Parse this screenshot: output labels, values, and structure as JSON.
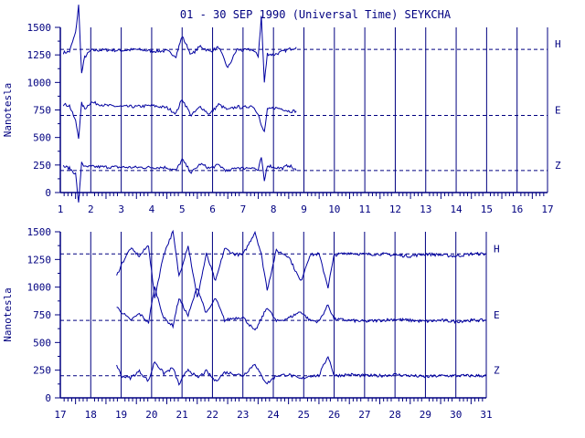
{
  "title": "01 - 30 SEP 1990 (Universal Time) SEYKCHA",
  "colors": {
    "axis": "#000080",
    "trace": "#0000a0",
    "background": "#ffffff"
  },
  "chart_data": [
    {
      "type": "line",
      "panel": "top",
      "ylabel": "Nanotesla",
      "ylim": [
        0,
        1500
      ],
      "yticks": [
        0,
        250,
        500,
        750,
        1000,
        1250,
        1500
      ],
      "xlim": [
        1,
        17
      ],
      "xticks": [
        1,
        2,
        3,
        4,
        5,
        6,
        7,
        8,
        9,
        10,
        11,
        12,
        13,
        14,
        15,
        16,
        17
      ],
      "x_unit": "day of month",
      "data_coverage": [
        1.1,
        8.75
      ],
      "baselines": [
        {
          "label": "H",
          "value": 1300
        },
        {
          "label": "E",
          "value": 700
        },
        {
          "label": "Z",
          "value": 200
        }
      ],
      "series": [
        {
          "name": "H",
          "x": [
            1.1,
            1.3,
            1.5,
            1.6,
            1.7,
            1.8,
            2.0,
            2.5,
            3.0,
            3.5,
            4.0,
            4.5,
            4.8,
            5.0,
            5.3,
            5.6,
            5.9,
            6.2,
            6.5,
            6.8,
            7.0,
            7.3,
            7.5,
            7.6,
            7.7,
            7.8,
            8.0,
            8.3,
            8.5,
            8.75
          ],
          "y": [
            1270,
            1280,
            1450,
            1700,
            1080,
            1230,
            1290,
            1295,
            1290,
            1300,
            1285,
            1285,
            1240,
            1420,
            1250,
            1330,
            1280,
            1320,
            1130,
            1300,
            1290,
            1300,
            1240,
            1600,
            1000,
            1260,
            1250,
            1280,
            1300,
            1320
          ]
        },
        {
          "name": "E",
          "x": [
            1.1,
            1.3,
            1.5,
            1.6,
            1.7,
            1.8,
            2.0,
            2.5,
            3.0,
            3.5,
            4.0,
            4.5,
            4.8,
            5.0,
            5.3,
            5.6,
            5.9,
            6.2,
            6.5,
            6.8,
            7.0,
            7.3,
            7.5,
            7.6,
            7.7,
            7.8,
            8.0,
            8.3,
            8.5,
            8.75
          ],
          "y": [
            800,
            790,
            650,
            500,
            810,
            760,
            820,
            790,
            780,
            780,
            790,
            770,
            720,
            850,
            700,
            780,
            710,
            800,
            750,
            780,
            770,
            790,
            720,
            600,
            550,
            750,
            770,
            760,
            740,
            740
          ]
        },
        {
          "name": "Z",
          "x": [
            1.1,
            1.3,
            1.5,
            1.6,
            1.7,
            1.8,
            2.0,
            2.5,
            3.0,
            3.5,
            4.0,
            4.5,
            4.8,
            5.0,
            5.3,
            5.6,
            5.9,
            6.2,
            6.5,
            6.8,
            7.0,
            7.3,
            7.5,
            7.6,
            7.7,
            7.8,
            8.0,
            8.3,
            8.5,
            8.75
          ],
          "y": [
            240,
            220,
            170,
            -100,
            280,
            230,
            235,
            232,
            230,
            228,
            228,
            228,
            200,
            300,
            180,
            260,
            220,
            250,
            190,
            230,
            220,
            230,
            200,
            320,
            100,
            250,
            230,
            220,
            250,
            200
          ]
        }
      ]
    },
    {
      "type": "line",
      "panel": "bottom",
      "ylabel": "Nanotesla",
      "ylim": [
        0,
        1500
      ],
      "yticks": [
        0,
        250,
        500,
        750,
        1000,
        1250,
        1500
      ],
      "xlim": [
        17,
        31
      ],
      "xticks": [
        17,
        18,
        19,
        20,
        21,
        22,
        23,
        24,
        25,
        26,
        27,
        28,
        29,
        30,
        31
      ],
      "x_unit": "day of month",
      "data_coverage": [
        18.85,
        31
      ],
      "baselines": [
        {
          "label": "H",
          "value": 1300
        },
        {
          "label": "E",
          "value": 700
        },
        {
          "label": "Z",
          "value": 200
        }
      ],
      "series": [
        {
          "name": "H",
          "x": [
            18.85,
            19.0,
            19.3,
            19.6,
            19.9,
            20.1,
            20.4,
            20.7,
            20.9,
            21.2,
            21.5,
            21.8,
            22.1,
            22.4,
            22.7,
            23.0,
            23.4,
            23.6,
            23.8,
            24.1,
            24.5,
            24.9,
            25.2,
            25.5,
            25.8,
            26.0,
            26.5,
            27.0,
            27.5,
            28.0,
            28.5,
            29.0,
            29.5,
            30.0,
            30.5,
            31.0
          ],
          "y": [
            1100,
            1200,
            1350,
            1280,
            1380,
            900,
            1300,
            1500,
            1100,
            1380,
            900,
            1300,
            1050,
            1350,
            1300,
            1290,
            1500,
            1300,
            980,
            1330,
            1280,
            1050,
            1290,
            1300,
            1000,
            1290,
            1310,
            1295,
            1300,
            1290,
            1280,
            1300,
            1290,
            1280,
            1300,
            1300
          ]
        },
        {
          "name": "E",
          "x": [
            18.85,
            19.0,
            19.3,
            19.6,
            19.9,
            20.1,
            20.4,
            20.7,
            20.9,
            21.2,
            21.5,
            21.8,
            22.1,
            22.4,
            22.7,
            23.0,
            23.4,
            23.6,
            23.8,
            24.1,
            24.5,
            24.9,
            25.2,
            25.5,
            25.8,
            26.0,
            26.5,
            27.0,
            27.5,
            28.0,
            28.5,
            29.0,
            29.5,
            30.0,
            30.5,
            31.0
          ],
          "y": [
            820,
            780,
            700,
            760,
            680,
            1000,
            720,
            650,
            900,
            740,
            1000,
            760,
            900,
            700,
            720,
            730,
            600,
            710,
            820,
            690,
            720,
            780,
            700,
            690,
            840,
            710,
            700,
            690,
            700,
            710,
            700,
            690,
            700,
            690,
            700,
            700
          ]
        },
        {
          "name": "Z",
          "x": [
            18.85,
            19.0,
            19.3,
            19.6,
            19.9,
            20.1,
            20.4,
            20.7,
            20.9,
            21.2,
            21.5,
            21.8,
            22.1,
            22.4,
            22.7,
            23.0,
            23.4,
            23.6,
            23.8,
            24.1,
            24.5,
            24.9,
            25.2,
            25.5,
            25.8,
            26.0,
            26.5,
            27.0,
            27.5,
            28.0,
            28.5,
            29.0,
            29.5,
            30.0,
            30.5,
            31.0
          ],
          "y": [
            300,
            200,
            180,
            240,
            150,
            330,
            220,
            270,
            120,
            260,
            180,
            240,
            150,
            230,
            220,
            200,
            310,
            200,
            130,
            200,
            210,
            170,
            200,
            200,
            380,
            200,
            210,
            200,
            200,
            210,
            200,
            190,
            200,
            200,
            200,
            200
          ]
        }
      ]
    }
  ]
}
